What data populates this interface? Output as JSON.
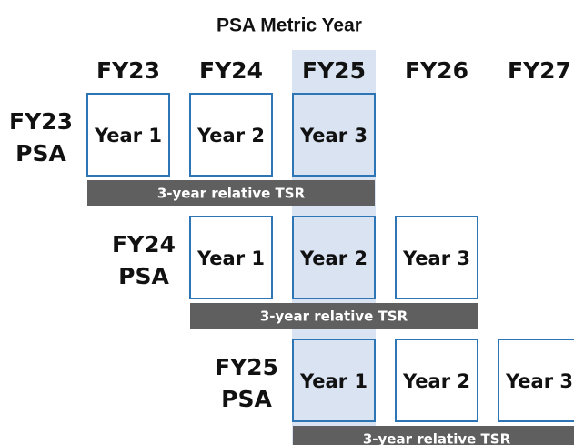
{
  "title": "PSA Metric Year",
  "columns": [
    "FY23",
    "FY24",
    "FY25",
    "FY26",
    "FY27"
  ],
  "rows": [
    {
      "label": [
        "FY23",
        "PSA"
      ],
      "years": [
        "Year 1",
        "Year 2",
        "Year 3"
      ],
      "bar": "3-year relative TSR"
    },
    {
      "label": [
        "FY24",
        "PSA"
      ],
      "years": [
        "Year 1",
        "Year 2",
        "Year 3"
      ],
      "bar": "3-year relative TSR"
    },
    {
      "label": [
        "FY25",
        "PSA"
      ],
      "years": [
        "Year 1",
        "Year 2",
        "Year 3"
      ],
      "bar": "3-year relative TSR"
    }
  ]
}
